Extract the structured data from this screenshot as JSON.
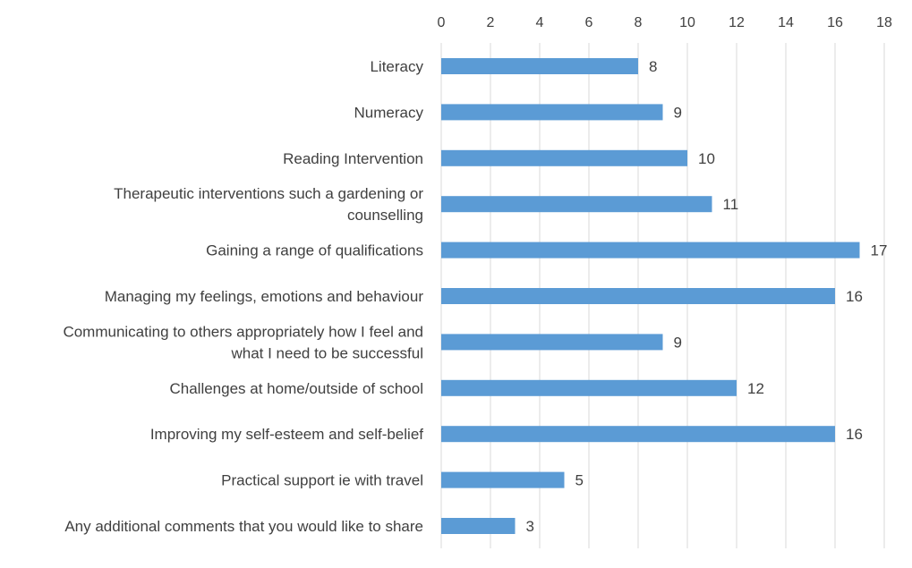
{
  "chart_data": {
    "type": "bar",
    "orientation": "horizontal",
    "title": "",
    "xlabel": "",
    "ylabel": "",
    "xlim": [
      0,
      18
    ],
    "x_ticks": [
      0,
      2,
      4,
      6,
      8,
      10,
      12,
      14,
      16,
      18
    ],
    "x_axis_position": "top",
    "grid": true,
    "legend": "none",
    "bar_color": "#5b9bd5",
    "categories": [
      [
        "Literacy"
      ],
      [
        "Numeracy"
      ],
      [
        "Reading Intervention"
      ],
      [
        "Therapeutic interventions such a gardening or",
        "counselling"
      ],
      [
        "Gaining a range of qualifications"
      ],
      [
        "Managing my feelings, emotions and behaviour"
      ],
      [
        "Communicating to others appropriately how I feel and",
        "what I need to be successful"
      ],
      [
        "Challenges at home/outside of school"
      ],
      [
        "Improving my self-esteem and self-belief"
      ],
      [
        "Practical support ie with travel"
      ],
      [
        "Any additional comments that you would like to share"
      ]
    ],
    "values": [
      8,
      9,
      10,
      11,
      17,
      16,
      9,
      12,
      16,
      5,
      3
    ],
    "data_labels": [
      "8",
      "9",
      "10",
      "11",
      "17",
      "16",
      "9",
      "12",
      "16",
      "5",
      "3"
    ]
  }
}
